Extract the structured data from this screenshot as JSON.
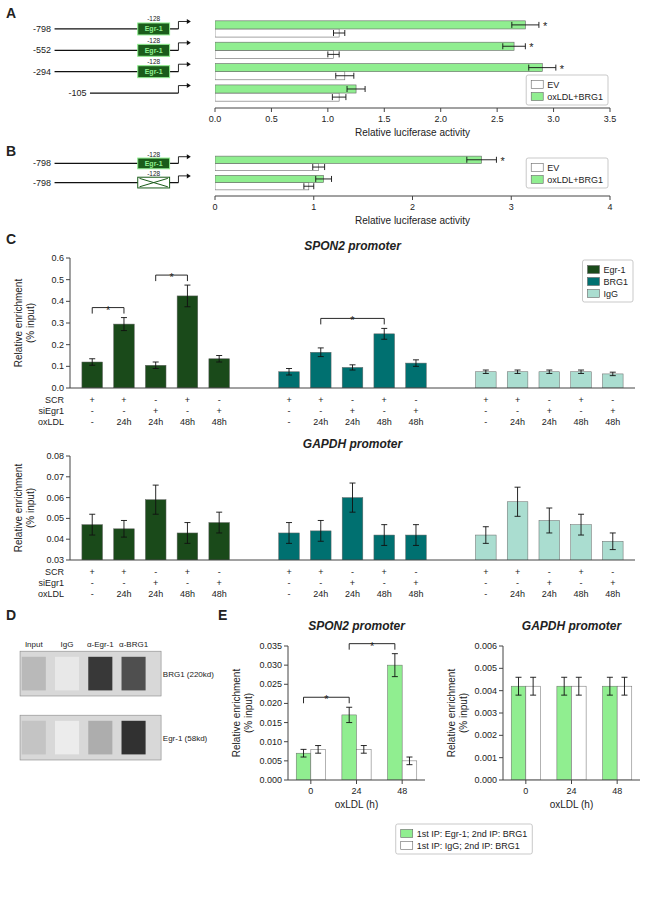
{
  "chart_data": [
    {
      "type": "bar",
      "orientation": "horizontal",
      "panel": "A",
      "categories": [
        "-798",
        "-552",
        "-294",
        "-105"
      ],
      "series": [
        {
          "name": "EV",
          "color": "#ffffff",
          "values": [
            1.1,
            1.05,
            1.15,
            1.1
          ],
          "errors": [
            0.05,
            0.05,
            0.08,
            0.06
          ]
        },
        {
          "name": "oxLDL+BRG1",
          "color": "#90EE90",
          "values": [
            2.75,
            2.65,
            2.9,
            1.25
          ],
          "errors": [
            0.12,
            0.1,
            0.12,
            0.08
          ]
        }
      ],
      "xlim": [
        0,
        3.5
      ],
      "xticks": [
        {
          "value": 0,
          "label": "0.0"
        },
        0.5,
        {
          "value": 1.0,
          "label": "1.0"
        },
        1.5,
        {
          "value": 2.0,
          "label": "2.0"
        },
        2.5,
        {
          "value": 3.0,
          "label": "3.0"
        },
        3.5
      ],
      "xlabel": "Relative luciferase activity",
      "legend": "lower right",
      "annotations": [
        {
          "text": "*",
          "series": "oxLDL+BRG1",
          "index": 0
        },
        {
          "text": "*",
          "series": "oxLDL+BRG1",
          "index": 1
        },
        {
          "text": "*",
          "series": "oxLDL+BRG1",
          "index": 2
        }
      ],
      "egr1_site": {
        "name": "Egr-1",
        "site": "-128",
        "color": "#1a5c1a",
        "present": [
          true,
          true,
          true,
          false
        ]
      }
    },
    {
      "type": "bar",
      "orientation": "horizontal",
      "panel": "B",
      "categories": [
        "-798",
        "-798"
      ],
      "series": [
        {
          "name": "EV",
          "color": "#ffffff",
          "values": [
            1.05,
            0.95
          ],
          "errors": [
            0.06,
            0.05
          ]
        },
        {
          "name": "oxLDL+BRG1",
          "color": "#90EE90",
          "values": [
            2.7,
            1.1
          ],
          "errors": [
            0.15,
            0.08
          ]
        }
      ],
      "xlim": [
        0,
        4
      ],
      "xticks": [
        0,
        1,
        2,
        3,
        4
      ],
      "xlabel": "Relative luciferase activity",
      "legend": "right",
      "annotations": [
        {
          "text": "*",
          "series": "oxLDL+BRG1",
          "index": 0
        }
      ],
      "egr1_site": {
        "name": "Egr-1",
        "site": "-128",
        "color": "#1a5c1a",
        "mutated": [
          false,
          true
        ]
      }
    },
    {
      "type": "bar",
      "panel": "C",
      "title": "SPON2 promoter",
      "ylabel": "Relative enrichment\n(% input)",
      "ylim": [
        0,
        0.6
      ],
      "yticks": [
        {
          "value": 0,
          "label": "0.0"
        },
        0.1,
        0.2,
        0.3,
        0.4,
        0.5,
        0.6
      ],
      "series": [
        {
          "name": "Egr-1",
          "color": "#1a4a1a",
          "values": [
            0.12,
            0.295,
            0.105,
            0.425,
            0.135
          ],
          "errors": [
            0.015,
            0.03,
            0.015,
            0.05,
            0.015
          ]
        },
        {
          "name": "BRG1",
          "color": "#007070",
          "values": [
            0.075,
            0.165,
            0.095,
            0.25,
            0.115
          ],
          "errors": [
            0.015,
            0.02,
            0.012,
            0.025,
            0.015
          ]
        },
        {
          "name": "IgG",
          "color": "#aaddd0",
          "values": [
            0.075,
            0.075,
            0.075,
            0.075,
            0.065
          ],
          "errors": [
            0.008,
            0.008,
            0.008,
            0.008,
            0.008
          ]
        }
      ],
      "legend": "upper right",
      "condition_rows": [
        {
          "name": "SCR",
          "labels": [
            "+",
            "+",
            "-",
            "+",
            "-",
            "+",
            "+",
            "-",
            "+",
            "-",
            "+",
            "+",
            "-",
            "+",
            "-"
          ]
        },
        {
          "name": "siEgr1",
          "labels": [
            "-",
            "-",
            "+",
            "-",
            "+",
            "-",
            "-",
            "+",
            "-",
            "+",
            "-",
            "-",
            "+",
            "-",
            "+"
          ]
        },
        {
          "name": "oxLDL",
          "labels": [
            "-",
            "24h",
            "24h",
            "48h",
            "48h",
            "-",
            "24h",
            "24h",
            "48h",
            "48h",
            "-",
            "24h",
            "24h",
            "48h",
            "48h"
          ]
        }
      ],
      "annotations": [
        {
          "text": "*",
          "series": "Egr-1",
          "from": 0,
          "to": 1
        },
        {
          "text": "*",
          "series": "Egr-1",
          "from": 2,
          "to": 3
        },
        {
          "text": "*",
          "series": "BRG1",
          "from": 1,
          "to": 3
        }
      ]
    },
    {
      "type": "bar",
      "title": "GAPDH promoter",
      "ylabel": "Relative enrichment\n(% input)",
      "ylim": [
        0.03,
        0.08
      ],
      "yticks": [
        0.03,
        0.04,
        0.05,
        0.06,
        0.07,
        0.08
      ],
      "series": [
        {
          "color": "#1a4a1a",
          "values": [
            0.047,
            0.045,
            0.059,
            0.043,
            0.048
          ],
          "errors": [
            0.005,
            0.004,
            0.007,
            0.005,
            0.005
          ]
        },
        {
          "color": "#007070",
          "values": [
            0.043,
            0.044,
            0.06,
            0.042,
            0.042
          ],
          "errors": [
            0.005,
            0.005,
            0.007,
            0.005,
            0.005
          ]
        },
        {
          "color": "#aaddd0",
          "values": [
            0.042,
            0.058,
            0.049,
            0.047,
            0.039
          ],
          "errors": [
            0.004,
            0.007,
            0.006,
            0.005,
            0.004
          ]
        }
      ],
      "condition_rows": [
        {
          "name": "SCR",
          "labels": [
            "+",
            "+",
            "-",
            "+",
            "-",
            "+",
            "+",
            "-",
            "+",
            "-",
            "+",
            "+",
            "-",
            "+",
            "-"
          ]
        },
        {
          "name": "siEgr1",
          "labels": [
            "-",
            "-",
            "+",
            "-",
            "+",
            "-",
            "-",
            "+",
            "-",
            "+",
            "-",
            "-",
            "+",
            "-",
            "+"
          ]
        },
        {
          "name": "oxLDL",
          "labels": [
            "-",
            "24h",
            "24h",
            "48h",
            "48h",
            "-",
            "24h",
            "24h",
            "48h",
            "48h",
            "-",
            "24h",
            "24h",
            "48h",
            "48h"
          ]
        }
      ]
    },
    {
      "type": "blot",
      "panel": "D",
      "categories": [
        "Input",
        "IgG",
        "α-Egr-1",
        "α-BRG1"
      ],
      "series": [
        {
          "name": "BRG1 (220kd)",
          "values": [
            0.3,
            0.1,
            0.85,
            0.75
          ]
        },
        {
          "name": "Egr-1 (58kd)",
          "values": [
            0.25,
            0.08,
            0.35,
            0.88
          ]
        }
      ]
    },
    {
      "type": "bar",
      "panel": "E",
      "title": "SPON2 promoter",
      "categories": [
        "0",
        "24",
        "48"
      ],
      "xlabel": "oxLDL (h)",
      "ylabel": "Relative enrichment\n(% input)",
      "ylim": [
        0,
        0.035
      ],
      "yticks": [
        {
          "value": 0,
          "label": "0.000"
        },
        0.005,
        {
          "value": 0.01,
          "label": "0.010"
        },
        0.015,
        {
          "value": 0.02,
          "label": "0.020"
        },
        0.025,
        {
          "value": 0.03,
          "label": "0.030"
        },
        0.035
      ],
      "series": [
        {
          "name": "1st IP: Egr-1; 2nd IP: BRG1",
          "color": "#90EE90",
          "values": [
            0.007,
            0.017,
            0.03
          ],
          "errors": [
            0.001,
            0.002,
            0.003
          ]
        },
        {
          "name": "1st IP: IgG; 2nd IP: BRG1",
          "color": "#ffffff",
          "values": [
            0.008,
            0.008,
            0.005
          ],
          "errors": [
            0.001,
            0.001,
            0.001
          ]
        }
      ],
      "legend": "bottom",
      "annotations": [
        {
          "text": "*",
          "series": "1st IP: Egr-1; 2nd IP: BRG1",
          "from": 0,
          "to": 1
        },
        {
          "text": "*",
          "series": "1st IP: Egr-1; 2nd IP: BRG1",
          "from": 1,
          "to": 2
        }
      ]
    },
    {
      "type": "bar",
      "title": "GAPDH promoter",
      "categories": [
        "0",
        "24",
        "48"
      ],
      "xlabel": "oxLDL (h)",
      "ylabel": "Relative enrichment\n(% input)",
      "ylim": [
        0,
        0.006
      ],
      "yticks": [
        {
          "value": 0,
          "label": "0.000"
        },
        0.001,
        0.002,
        0.003,
        0.004,
        0.005,
        0.006
      ],
      "series": [
        {
          "color": "#90EE90",
          "values": [
            0.0042,
            0.0042,
            0.0042
          ],
          "errors": [
            0.0004,
            0.0004,
            0.0004
          ]
        },
        {
          "color": "#ffffff",
          "values": [
            0.0042,
            0.0042,
            0.0042
          ],
          "errors": [
            0.0004,
            0.0004,
            0.0004
          ]
        }
      ]
    }
  ]
}
